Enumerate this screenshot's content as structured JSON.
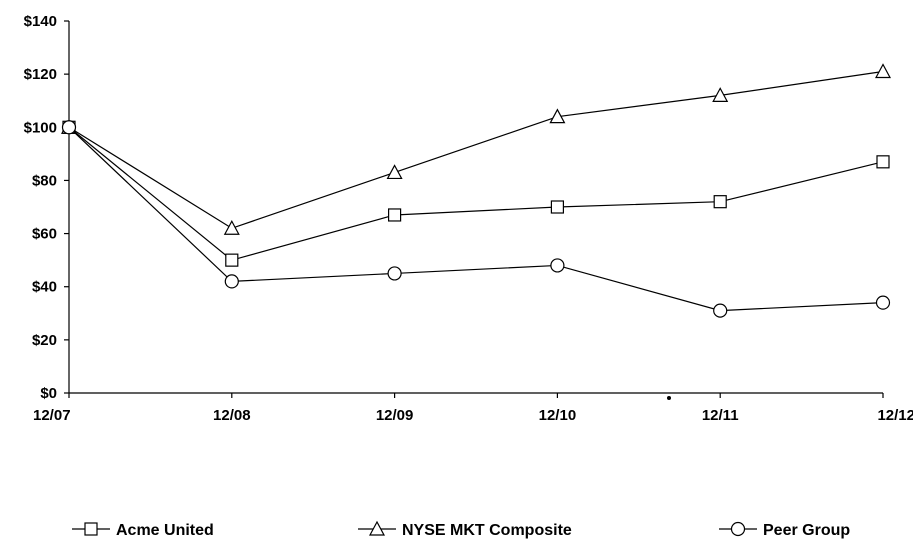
{
  "chart_data": {
    "type": "line",
    "title": "",
    "xlabel": "",
    "ylabel": "",
    "x": [
      "12/07",
      "12/08",
      "12/09",
      "12/10",
      "12/11",
      "12/12"
    ],
    "yticks": [
      "$0",
      "$20",
      "$40",
      "$60",
      "$80",
      "$100",
      "$120",
      "$140"
    ],
    "ylim": [
      0,
      140
    ],
    "grid": false,
    "legend": "bottom",
    "series": [
      {
        "name": "Acme United",
        "marker": "square",
        "values": [
          100,
          50,
          67,
          70,
          72,
          87
        ]
      },
      {
        "name": "NYSE MKT Composite",
        "marker": "triangle",
        "values": [
          100,
          62,
          83,
          104,
          112,
          121
        ]
      },
      {
        "name": "Peer Group",
        "marker": "circle",
        "values": [
          100,
          42,
          45,
          48,
          31,
          34
        ]
      }
    ],
    "line_color": "#000000"
  }
}
